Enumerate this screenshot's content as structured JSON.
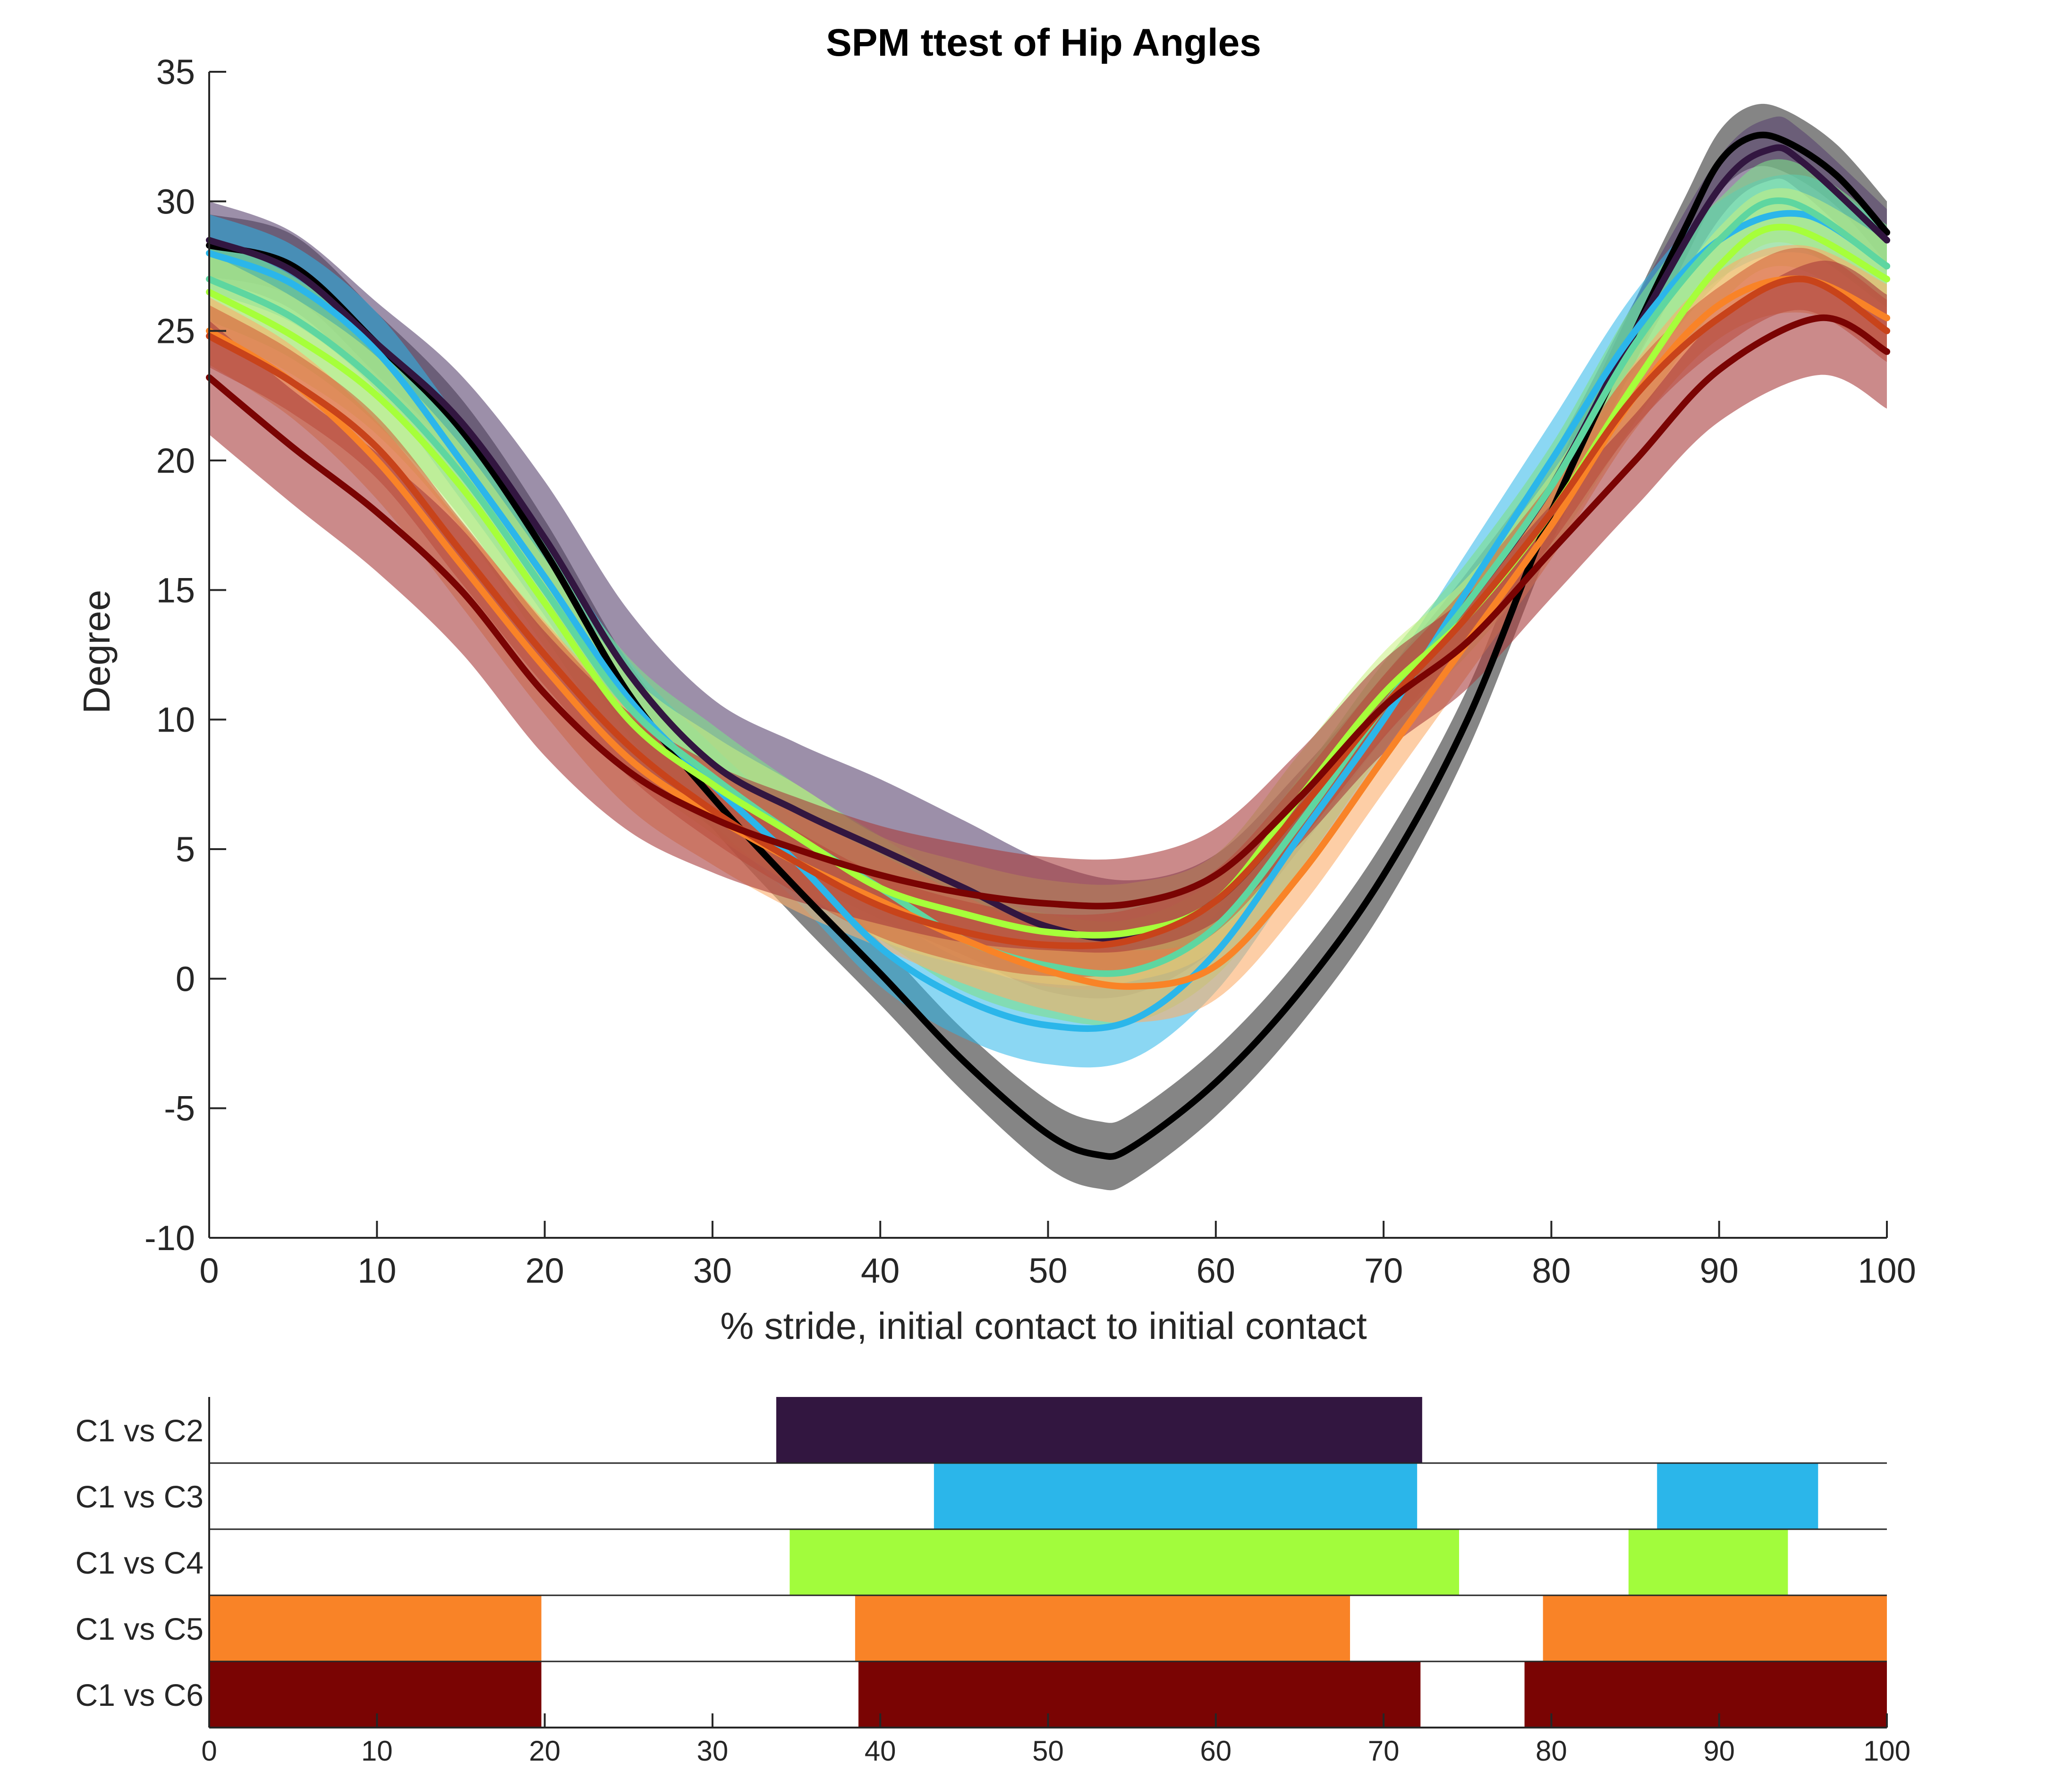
{
  "chart_data": [
    {
      "type": "line",
      "title": "SPM ttest of Hip Angles",
      "xlabel": "% stride, initial contact to initial contact",
      "ylabel": "Degree",
      "xlim": [
        0,
        100
      ],
      "ylim": [
        -10,
        35
      ],
      "xticks": [
        0,
        10,
        20,
        30,
        40,
        50,
        60,
        70,
        80,
        90,
        100
      ],
      "yticks": [
        -10,
        -5,
        0,
        5,
        10,
        15,
        20,
        25,
        30,
        35
      ],
      "xtick_labels": [
        "0",
        "10",
        "20",
        "30",
        "40",
        "50",
        "60",
        "70",
        "80",
        "90",
        "100"
      ],
      "ytick_labels": [
        "-10",
        "-5",
        "0",
        "5",
        "10",
        "15",
        "20",
        "25",
        "30",
        "35"
      ],
      "grid": false,
      "series": [
        {
          "color": "#000000",
          "band_color": "#444444",
          "band_opacity": 0.65,
          "x": [
            0,
            5,
            10,
            15,
            20,
            25,
            30,
            35,
            40,
            45,
            50,
            53,
            55,
            60,
            65,
            70,
            75,
            80,
            85,
            88,
            90,
            92,
            94,
            97,
            100
          ],
          "mean": [
            28.3,
            27.5,
            24.5,
            21.2,
            16.5,
            11.0,
            7.0,
            3.5,
            0.2,
            -3.2,
            -6.0,
            -6.8,
            -6.5,
            -4.0,
            -0.5,
            4.0,
            10.0,
            18.0,
            25.0,
            29.0,
            31.5,
            32.5,
            32.3,
            31.0,
            28.8
          ],
          "half_width": [
            1.2,
            1.2,
            1.2,
            1.2,
            1.2,
            1.2,
            1.2,
            1.2,
            1.2,
            1.2,
            1.3,
            1.3,
            1.3,
            1.3,
            1.3,
            1.3,
            1.2,
            1.2,
            1.2,
            1.2,
            1.2,
            1.2,
            1.2,
            1.2,
            1.2
          ]
        },
        {
          "color": "#321640",
          "band_color": "#5a4470",
          "band_opacity": 0.6,
          "x": [
            0,
            5,
            10,
            15,
            20,
            25,
            30,
            35,
            40,
            45,
            50,
            55,
            60,
            65,
            70,
            75,
            80,
            85,
            90,
            93,
            95,
            100
          ],
          "mean": [
            28.5,
            27.3,
            24.5,
            21.5,
            17.0,
            11.8,
            8.3,
            6.5,
            5.0,
            3.5,
            2.0,
            1.6,
            3.0,
            6.5,
            10.5,
            14.5,
            19.0,
            25.0,
            30.5,
            32.0,
            31.5,
            28.5
          ],
          "half_width": [
            1.5,
            1.5,
            1.6,
            1.8,
            2.2,
            2.4,
            2.5,
            2.6,
            2.7,
            2.6,
            2.5,
            2.2,
            1.8,
            1.5,
            1.2,
            1.2,
            1.2,
            1.2,
            1.2,
            1.2,
            1.2,
            1.2
          ]
        },
        {
          "color": "#2bb6ea",
          "band_color": "#2bb6ea",
          "band_opacity": 0.55,
          "x": [
            0,
            5,
            10,
            15,
            20,
            25,
            30,
            35,
            40,
            45,
            50,
            55,
            60,
            65,
            70,
            75,
            80,
            85,
            90,
            95,
            100
          ],
          "mean": [
            28.0,
            26.8,
            24.2,
            20.0,
            15.5,
            10.8,
            7.5,
            4.5,
            1.2,
            -0.8,
            -1.8,
            -1.6,
            1.0,
            5.5,
            10.0,
            15.0,
            20.0,
            25.0,
            28.5,
            29.5,
            27.5
          ],
          "half_width": [
            1.5,
            1.5,
            1.5,
            1.5,
            1.5,
            1.5,
            1.5,
            1.5,
            1.5,
            1.5,
            1.5,
            1.5,
            1.5,
            1.5,
            1.5,
            1.5,
            1.5,
            1.5,
            1.5,
            1.5,
            1.5
          ]
        },
        {
          "color": "#5ed6a0",
          "band_color": "#7de08a",
          "band_opacity": 0.6,
          "x": [
            0,
            5,
            10,
            15,
            20,
            25,
            30,
            35,
            40,
            45,
            50,
            55,
            60,
            65,
            70,
            75,
            80,
            85,
            90,
            94,
            100
          ],
          "mean": [
            27.0,
            25.5,
            23.0,
            19.5,
            15.0,
            10.5,
            7.8,
            5.5,
            3.5,
            1.5,
            0.5,
            0.3,
            2.0,
            6.0,
            10.5,
            14.5,
            19.0,
            24.5,
            28.5,
            30.0,
            27.5
          ],
          "half_width": [
            1.6,
            1.6,
            1.6,
            1.7,
            1.8,
            1.9,
            2.0,
            2.0,
            2.0,
            2.0,
            2.0,
            2.0,
            1.9,
            1.8,
            1.7,
            1.6,
            1.6,
            1.6,
            1.6,
            1.6,
            1.6
          ]
        },
        {
          "color": "#a6ff3a",
          "band_color": "#c8f080",
          "band_opacity": 0.55,
          "x": [
            0,
            5,
            10,
            15,
            20,
            25,
            30,
            35,
            40,
            45,
            50,
            55,
            60,
            65,
            70,
            75,
            80,
            85,
            90,
            94,
            100
          ],
          "mean": [
            26.5,
            24.8,
            22.5,
            19.0,
            14.5,
            10.0,
            7.5,
            5.5,
            3.5,
            2.5,
            1.8,
            1.8,
            3.0,
            7.0,
            11.0,
            14.0,
            18.0,
            23.0,
            27.5,
            29.0,
            27.0
          ],
          "half_width": [
            1.5,
            1.5,
            1.5,
            1.6,
            1.7,
            1.8,
            1.9,
            2.0,
            2.0,
            2.0,
            2.0,
            1.9,
            1.8,
            1.7,
            1.6,
            1.5,
            1.5,
            1.5,
            1.5,
            1.5,
            1.5
          ]
        },
        {
          "color": "#f98327",
          "band_color": "#fbad6b",
          "band_opacity": 0.6,
          "x": [
            0,
            5,
            10,
            15,
            20,
            25,
            30,
            35,
            40,
            45,
            50,
            55,
            60,
            65,
            70,
            75,
            80,
            85,
            90,
            95,
            100
          ],
          "mean": [
            25.0,
            23.0,
            20.0,
            16.0,
            12.0,
            8.5,
            6.3,
            4.5,
            3.0,
            1.5,
            0.3,
            -0.3,
            0.5,
            4.0,
            8.5,
            13.0,
            17.5,
            22.5,
            26.0,
            27.0,
            25.5
          ],
          "half_width": [
            1.3,
            1.4,
            1.5,
            1.6,
            1.8,
            1.9,
            1.9,
            1.9,
            1.8,
            1.7,
            1.5,
            1.4,
            1.3,
            1.3,
            1.3,
            1.3,
            1.3,
            1.3,
            1.3,
            1.3,
            1.3
          ]
        },
        {
          "color": "#c8431a",
          "band_color": "#d05a35",
          "band_opacity": 0.55,
          "x": [
            0,
            5,
            10,
            15,
            20,
            25,
            30,
            35,
            40,
            45,
            50,
            55,
            60,
            65,
            70,
            75,
            80,
            85,
            90,
            95,
            100
          ],
          "mean": [
            24.8,
            23.0,
            20.5,
            16.5,
            12.5,
            9.0,
            6.5,
            4.5,
            2.8,
            1.8,
            1.3,
            1.5,
            3.0,
            6.5,
            10.5,
            14.0,
            18.0,
            22.5,
            25.5,
            27.0,
            25.0
          ],
          "half_width": [
            1.2,
            1.2,
            1.2,
            1.2,
            1.2,
            1.2,
            1.2,
            1.2,
            1.2,
            1.2,
            1.2,
            1.2,
            1.2,
            1.2,
            1.2,
            1.2,
            1.2,
            1.2,
            1.2,
            1.2,
            1.2
          ]
        },
        {
          "color": "#7a0403",
          "band_color": "#a83c3c",
          "band_opacity": 0.6,
          "x": [
            0,
            5,
            10,
            15,
            20,
            25,
            30,
            35,
            40,
            45,
            50,
            55,
            60,
            65,
            70,
            75,
            80,
            85,
            90,
            96,
            100
          ],
          "mean": [
            23.2,
            20.5,
            18.0,
            15.0,
            11.0,
            8.0,
            6.2,
            5.0,
            4.0,
            3.3,
            2.9,
            2.9,
            4.0,
            7.0,
            10.5,
            13.0,
            16.5,
            20.0,
            23.5,
            25.5,
            24.2
          ],
          "half_width": [
            2.2,
            2.2,
            2.3,
            2.4,
            2.4,
            2.3,
            2.1,
            2.0,
            1.9,
            1.9,
            1.8,
            1.8,
            1.8,
            1.8,
            1.8,
            1.8,
            1.8,
            1.8,
            2.0,
            2.2,
            2.2
          ]
        }
      ]
    },
    {
      "type": "bar",
      "orientation": "horizontal-intervals",
      "xlim": [
        0,
        100
      ],
      "xticks": [
        0,
        10,
        20,
        30,
        40,
        50,
        60,
        70,
        80,
        90,
        100
      ],
      "xtick_labels": [
        "0",
        "10",
        "20",
        "30",
        "40",
        "50",
        "60",
        "70",
        "80",
        "90",
        "100"
      ],
      "rows": [
        {
          "label": "C1 vs C2",
          "color": "#321640",
          "intervals": [
            [
              33.8,
              72.3
            ]
          ]
        },
        {
          "label": "C1 vs C3",
          "color": "#2bb6ea",
          "intervals": [
            [
              43.2,
              72.0
            ],
            [
              86.3,
              95.9
            ]
          ]
        },
        {
          "label": "C1 vs C4",
          "color": "#a2fc3c",
          "intervals": [
            [
              34.6,
              74.5
            ],
            [
              84.6,
              94.1
            ]
          ]
        },
        {
          "label": "C1 vs C5",
          "color": "#f98327",
          "intervals": [
            [
              0,
              19.8
            ],
            [
              38.5,
              68.0
            ],
            [
              79.5,
              100
            ]
          ]
        },
        {
          "label": "C1 vs C6",
          "color": "#7a0403",
          "intervals": [
            [
              0,
              19.8
            ],
            [
              38.7,
              72.2
            ],
            [
              78.4,
              100
            ]
          ]
        }
      ]
    }
  ]
}
